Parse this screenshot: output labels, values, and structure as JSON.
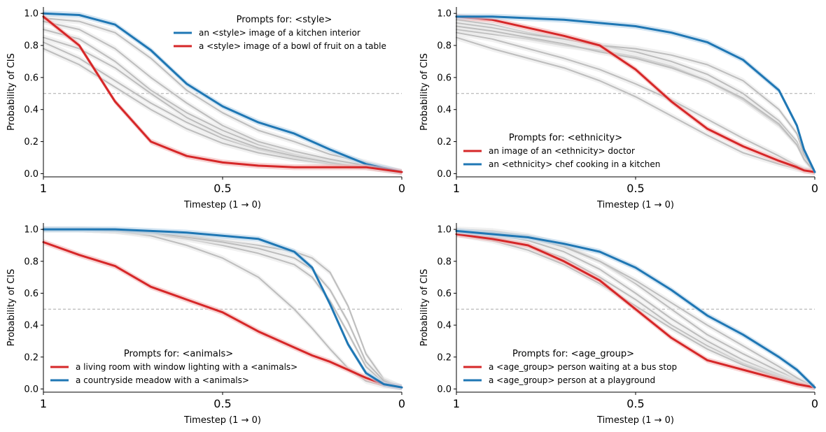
{
  "colors": {
    "red": "#d62728",
    "blue": "#1f77b4",
    "gray": "#bdbdbd",
    "band_gray": "#e6e6e6",
    "band_red": "#f4b6b6",
    "band_blue": "#b7d3ea",
    "ref_line": "#a8a8a8"
  },
  "chart_data": [
    {
      "type": "line",
      "title": "",
      "xlabel": "Timestep (1 → 0)",
      "ylabel": "Probability of CIS",
      "xlim": [
        1,
        0
      ],
      "ylim": [
        0,
        1
      ],
      "x_ticks": [
        1,
        0.5,
        0
      ],
      "x_tick_labels": [
        "1",
        "0.5",
        "0"
      ],
      "y_ticks": [
        0,
        0.2,
        0.4,
        0.6,
        0.8,
        1.0
      ],
      "y_tick_labels": [
        "0.0",
        "0.2",
        "0.4",
        "0.6",
        "0.8",
        "1.0"
      ],
      "reference_line": 0.5,
      "x": [
        1.0,
        0.9,
        0.8,
        0.7,
        0.6,
        0.5,
        0.4,
        0.3,
        0.2,
        0.1,
        0.0
      ],
      "legend": {
        "title": "Prompts for: <style>",
        "location": "top-right",
        "entries": [
          {
            "label": "an <style> image of a kitchen interior",
            "color": "blue"
          },
          {
            "label": "a <style> image of a bowl of fruit on a table",
            "color": "red"
          }
        ]
      },
      "series": [
        {
          "name": "an <style> image of a kitchen interior",
          "color": "blue",
          "values": [
            1.0,
            0.99,
            0.93,
            0.77,
            0.56,
            0.42,
            0.32,
            0.25,
            0.15,
            0.06,
            0.01
          ]
        },
        {
          "name": "a <style> image of a bowl of fruit on a table",
          "color": "red",
          "values": [
            0.98,
            0.8,
            0.45,
            0.2,
            0.11,
            0.07,
            0.05,
            0.04,
            0.04,
            0.04,
            0.01
          ]
        },
        {
          "name": "other",
          "color": "gray",
          "values": [
            0.97,
            0.95,
            0.88,
            0.72,
            0.52,
            0.38,
            0.27,
            0.2,
            0.12,
            0.07,
            0.01
          ]
        },
        {
          "name": "other",
          "color": "gray",
          "values": [
            0.9,
            0.84,
            0.7,
            0.52,
            0.38,
            0.27,
            0.18,
            0.12,
            0.08,
            0.05,
            0.01
          ]
        },
        {
          "name": "other",
          "color": "gray",
          "values": [
            0.82,
            0.72,
            0.58,
            0.44,
            0.32,
            0.22,
            0.15,
            0.1,
            0.07,
            0.04,
            0.01
          ]
        },
        {
          "name": "other",
          "color": "gray",
          "values": [
            0.78,
            0.68,
            0.54,
            0.4,
            0.28,
            0.19,
            0.13,
            0.09,
            0.06,
            0.04,
            0.01
          ]
        },
        {
          "name": "other",
          "color": "gray",
          "values": [
            0.85,
            0.78,
            0.66,
            0.5,
            0.35,
            0.24,
            0.16,
            0.11,
            0.07,
            0.04,
            0.01
          ]
        },
        {
          "name": "other",
          "color": "gray",
          "values": [
            0.95,
            0.9,
            0.78,
            0.6,
            0.44,
            0.3,
            0.2,
            0.14,
            0.09,
            0.05,
            0.01
          ]
        }
      ]
    },
    {
      "type": "line",
      "title": "",
      "xlabel": "Timestep (1 → 0)",
      "ylabel": "Probability of CIS",
      "xlim": [
        1,
        0
      ],
      "ylim": [
        0,
        1
      ],
      "x_ticks": [
        1,
        0.5,
        0
      ],
      "x_tick_labels": [
        "1",
        "0.5",
        "0"
      ],
      "y_ticks": [
        0,
        0.2,
        0.4,
        0.6,
        0.8,
        1.0
      ],
      "y_tick_labels": [
        "0.0",
        "0.2",
        "0.4",
        "0.6",
        "0.8",
        "1.0"
      ],
      "reference_line": 0.5,
      "x": [
        1.0,
        0.9,
        0.8,
        0.7,
        0.6,
        0.5,
        0.4,
        0.3,
        0.2,
        0.1,
        0.05,
        0.03,
        0.0
      ],
      "legend": {
        "title": "Prompts for: <ethnicity>",
        "location": "bottom-left",
        "entries": [
          {
            "label": "an image of an <ethnicity> doctor",
            "color": "red"
          },
          {
            "label": "an <ethnicity> chef cooking in a kitchen",
            "color": "blue"
          }
        ]
      },
      "series": [
        {
          "name": "an image of an <ethnicity> doctor",
          "color": "red",
          "values": [
            0.98,
            0.96,
            0.91,
            0.86,
            0.8,
            0.65,
            0.45,
            0.28,
            0.17,
            0.08,
            0.04,
            0.02,
            0.01
          ]
        },
        {
          "name": "an <ethnicity> chef cooking in a kitchen",
          "color": "blue",
          "values": [
            0.98,
            0.98,
            0.97,
            0.96,
            0.94,
            0.92,
            0.88,
            0.82,
            0.71,
            0.52,
            0.3,
            0.15,
            0.01
          ]
        },
        {
          "name": "other",
          "color": "gray",
          "values": [
            0.96,
            0.93,
            0.88,
            0.84,
            0.8,
            0.76,
            0.7,
            0.62,
            0.5,
            0.33,
            0.2,
            0.1,
            0.01
          ]
        },
        {
          "name": "other",
          "color": "gray",
          "values": [
            0.9,
            0.87,
            0.84,
            0.8,
            0.77,
            0.73,
            0.67,
            0.58,
            0.46,
            0.3,
            0.18,
            0.09,
            0.01
          ]
        },
        {
          "name": "other",
          "color": "gray",
          "values": [
            0.88,
            0.84,
            0.78,
            0.72,
            0.65,
            0.56,
            0.46,
            0.34,
            0.22,
            0.11,
            0.05,
            0.03,
            0.01
          ]
        },
        {
          "name": "other",
          "color": "gray",
          "values": [
            0.85,
            0.78,
            0.72,
            0.66,
            0.58,
            0.48,
            0.36,
            0.24,
            0.13,
            0.06,
            0.03,
            0.02,
            0.01
          ]
        },
        {
          "name": "other",
          "color": "gray",
          "values": [
            0.94,
            0.91,
            0.87,
            0.84,
            0.8,
            0.78,
            0.74,
            0.68,
            0.58,
            0.4,
            0.25,
            0.12,
            0.01
          ]
        },
        {
          "name": "other",
          "color": "gray",
          "values": [
            0.92,
            0.89,
            0.85,
            0.81,
            0.76,
            0.72,
            0.66,
            0.58,
            0.47,
            0.31,
            0.18,
            0.09,
            0.01
          ]
        }
      ]
    },
    {
      "type": "line",
      "title": "",
      "xlabel": "Timestep (1 → 0)",
      "ylabel": "Probability of CIS",
      "xlim": [
        1,
        0
      ],
      "ylim": [
        0,
        1
      ],
      "x_ticks": [
        1,
        0.5,
        0
      ],
      "x_tick_labels": [
        "1",
        "0.5",
        "0"
      ],
      "y_ticks": [
        0,
        0.2,
        0.4,
        0.6,
        0.8,
        1.0
      ],
      "y_tick_labels": [
        "0.0",
        "0.2",
        "0.4",
        "0.6",
        "0.8",
        "1.0"
      ],
      "reference_line": 0.5,
      "x": [
        1.0,
        0.9,
        0.8,
        0.7,
        0.6,
        0.5,
        0.4,
        0.3,
        0.25,
        0.2,
        0.15,
        0.1,
        0.05,
        0.0
      ],
      "legend": {
        "title": "Prompts for: <animals>",
        "location": "bottom-left",
        "entries": [
          {
            "label": "a living room with window lighting with a <animals>",
            "color": "red"
          },
          {
            "label": "a countryside meadow with a <animals>",
            "color": "blue"
          }
        ]
      },
      "series": [
        {
          "name": "a living room with window lighting with a <animals>",
          "color": "red",
          "values": [
            0.92,
            0.84,
            0.77,
            0.64,
            0.56,
            0.48,
            0.36,
            0.26,
            0.21,
            0.17,
            0.12,
            0.07,
            0.03,
            0.01
          ]
        },
        {
          "name": "a countryside meadow with a <animals>",
          "color": "blue",
          "values": [
            1.0,
            1.0,
            1.0,
            0.99,
            0.98,
            0.96,
            0.94,
            0.86,
            0.76,
            0.53,
            0.28,
            0.1,
            0.03,
            0.01
          ]
        },
        {
          "name": "other",
          "color": "gray",
          "values": [
            1.0,
            1.0,
            0.99,
            0.98,
            0.96,
            0.93,
            0.9,
            0.86,
            0.82,
            0.73,
            0.52,
            0.22,
            0.06,
            0.01
          ]
        },
        {
          "name": "other",
          "color": "gray",
          "values": [
            1.0,
            1.0,
            0.99,
            0.97,
            0.94,
            0.9,
            0.85,
            0.78,
            0.7,
            0.55,
            0.35,
            0.14,
            0.04,
            0.01
          ]
        },
        {
          "name": "other",
          "color": "gray",
          "values": [
            1.0,
            1.0,
            0.99,
            0.96,
            0.9,
            0.82,
            0.7,
            0.5,
            0.38,
            0.25,
            0.13,
            0.05,
            0.02,
            0.01
          ]
        },
        {
          "name": "other",
          "color": "gray",
          "values": [
            1.0,
            1.0,
            0.99,
            0.98,
            0.95,
            0.92,
            0.88,
            0.82,
            0.75,
            0.62,
            0.42,
            0.17,
            0.05,
            0.01
          ]
        }
      ]
    },
    {
      "type": "line",
      "title": "",
      "xlabel": "Timestep (1 → 0)",
      "ylabel": "Probability of CIS",
      "xlim": [
        1,
        0
      ],
      "ylim": [
        0,
        1
      ],
      "x_ticks": [
        1,
        0.5,
        0
      ],
      "x_tick_labels": [
        "1",
        "0.5",
        "0"
      ],
      "y_ticks": [
        0,
        0.2,
        0.4,
        0.6,
        0.8,
        1.0
      ],
      "y_tick_labels": [
        "0.0",
        "0.2",
        "0.4",
        "0.6",
        "0.8",
        "1.0"
      ],
      "reference_line": 0.5,
      "x": [
        1.0,
        0.9,
        0.8,
        0.7,
        0.6,
        0.5,
        0.4,
        0.3,
        0.2,
        0.1,
        0.05,
        0.0
      ],
      "legend": {
        "title": "Prompts for: <age_group>",
        "location": "bottom-left",
        "entries": [
          {
            "label": "a <age_group> person waiting at a bus stop",
            "color": "red"
          },
          {
            "label": "a <age_group> person at a playground",
            "color": "blue"
          }
        ]
      },
      "series": [
        {
          "name": "a <age_group> person waiting at a bus stop",
          "color": "red",
          "values": [
            0.97,
            0.94,
            0.9,
            0.8,
            0.68,
            0.5,
            0.32,
            0.18,
            0.12,
            0.06,
            0.03,
            0.01
          ]
        },
        {
          "name": "a <age_group> person at a playground",
          "color": "blue",
          "values": [
            0.99,
            0.97,
            0.95,
            0.91,
            0.86,
            0.76,
            0.62,
            0.46,
            0.34,
            0.2,
            0.12,
            0.01
          ]
        },
        {
          "name": "other",
          "color": "gray",
          "values": [
            1.0,
            0.99,
            0.96,
            0.9,
            0.8,
            0.66,
            0.5,
            0.34,
            0.22,
            0.11,
            0.06,
            0.01
          ]
        },
        {
          "name": "other",
          "color": "gray",
          "values": [
            0.99,
            0.97,
            0.93,
            0.86,
            0.75,
            0.6,
            0.44,
            0.3,
            0.18,
            0.09,
            0.05,
            0.01
          ]
        },
        {
          "name": "other",
          "color": "gray",
          "values": [
            0.98,
            0.95,
            0.9,
            0.82,
            0.7,
            0.56,
            0.4,
            0.27,
            0.16,
            0.08,
            0.04,
            0.01
          ]
        },
        {
          "name": "other",
          "color": "gray",
          "values": [
            0.99,
            0.98,
            0.95,
            0.89,
            0.8,
            0.68,
            0.54,
            0.4,
            0.27,
            0.14,
            0.07,
            0.01
          ]
        },
        {
          "name": "other",
          "color": "gray",
          "values": [
            0.97,
            0.93,
            0.87,
            0.78,
            0.66,
            0.52,
            0.38,
            0.25,
            0.15,
            0.07,
            0.04,
            0.01
          ]
        }
      ]
    }
  ]
}
